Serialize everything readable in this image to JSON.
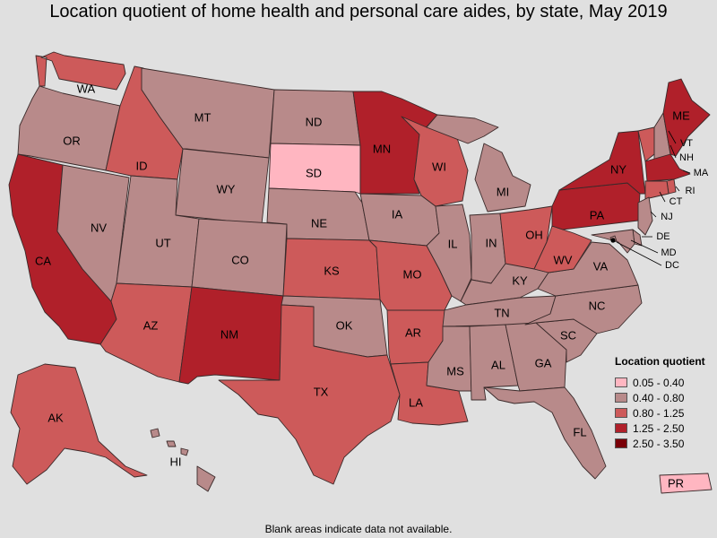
{
  "title": "Location quotient of home health and personal care aides, by state, May 2019",
  "legend": {
    "title": "Location quotient",
    "items": [
      {
        "label": "0.05 - 0.40",
        "color": "#ffb6c1"
      },
      {
        "label": "0.40 - 0.80",
        "color": "#b88a8a"
      },
      {
        "label": "0.80 - 1.25",
        "color": "#cd5a5a"
      },
      {
        "label": "1.25 - 2.50",
        "color": "#b0202a"
      },
      {
        "label": "2.50 - 3.50",
        "color": "#7a0008"
      }
    ]
  },
  "footnote": "Blank areas indicate data not available.",
  "states": [
    {
      "abbr": "WA",
      "class": 2
    },
    {
      "abbr": "OR",
      "class": 1
    },
    {
      "abbr": "CA",
      "class": 3
    },
    {
      "abbr": "NV",
      "class": 1
    },
    {
      "abbr": "ID",
      "class": 2
    },
    {
      "abbr": "MT",
      "class": 1
    },
    {
      "abbr": "WY",
      "class": 1
    },
    {
      "abbr": "UT",
      "class": 1
    },
    {
      "abbr": "AZ",
      "class": 2
    },
    {
      "abbr": "CO",
      "class": 1
    },
    {
      "abbr": "NM",
      "class": 3
    },
    {
      "abbr": "ND",
      "class": 1
    },
    {
      "abbr": "SD",
      "class": 0
    },
    {
      "abbr": "NE",
      "class": 1
    },
    {
      "abbr": "KS",
      "class": 2
    },
    {
      "abbr": "OK",
      "class": 1
    },
    {
      "abbr": "TX",
      "class": 2
    },
    {
      "abbr": "MN",
      "class": 3
    },
    {
      "abbr": "IA",
      "class": 1
    },
    {
      "abbr": "MO",
      "class": 2
    },
    {
      "abbr": "AR",
      "class": 2
    },
    {
      "abbr": "LA",
      "class": 2
    },
    {
      "abbr": "WI",
      "class": 2
    },
    {
      "abbr": "IL",
      "class": 1
    },
    {
      "abbr": "MI",
      "class": 1
    },
    {
      "abbr": "IN",
      "class": 1
    },
    {
      "abbr": "OH",
      "class": 2
    },
    {
      "abbr": "KY",
      "class": 1
    },
    {
      "abbr": "TN",
      "class": 1
    },
    {
      "abbr": "MS",
      "class": 1
    },
    {
      "abbr": "AL",
      "class": 1
    },
    {
      "abbr": "GA",
      "class": 1
    },
    {
      "abbr": "FL",
      "class": 1
    },
    {
      "abbr": "SC",
      "class": 1
    },
    {
      "abbr": "NC",
      "class": 1
    },
    {
      "abbr": "VA",
      "class": 1
    },
    {
      "abbr": "WV",
      "class": 2
    },
    {
      "abbr": "PA",
      "class": 3
    },
    {
      "abbr": "NY",
      "class": 3
    },
    {
      "abbr": "VT",
      "class": 2
    },
    {
      "abbr": "NH",
      "class": 1
    },
    {
      "abbr": "ME",
      "class": 3
    },
    {
      "abbr": "MA",
      "class": 3
    },
    {
      "abbr": "RI",
      "class": 2
    },
    {
      "abbr": "CT",
      "class": 2
    },
    {
      "abbr": "NJ",
      "class": 1
    },
    {
      "abbr": "DE",
      "class": 1
    },
    {
      "abbr": "MD",
      "class": 1
    },
    {
      "abbr": "DC",
      "class": 1
    },
    {
      "abbr": "AK",
      "class": 2
    },
    {
      "abbr": "HI",
      "class": 1
    },
    {
      "abbr": "PR",
      "class": 0
    }
  ]
}
